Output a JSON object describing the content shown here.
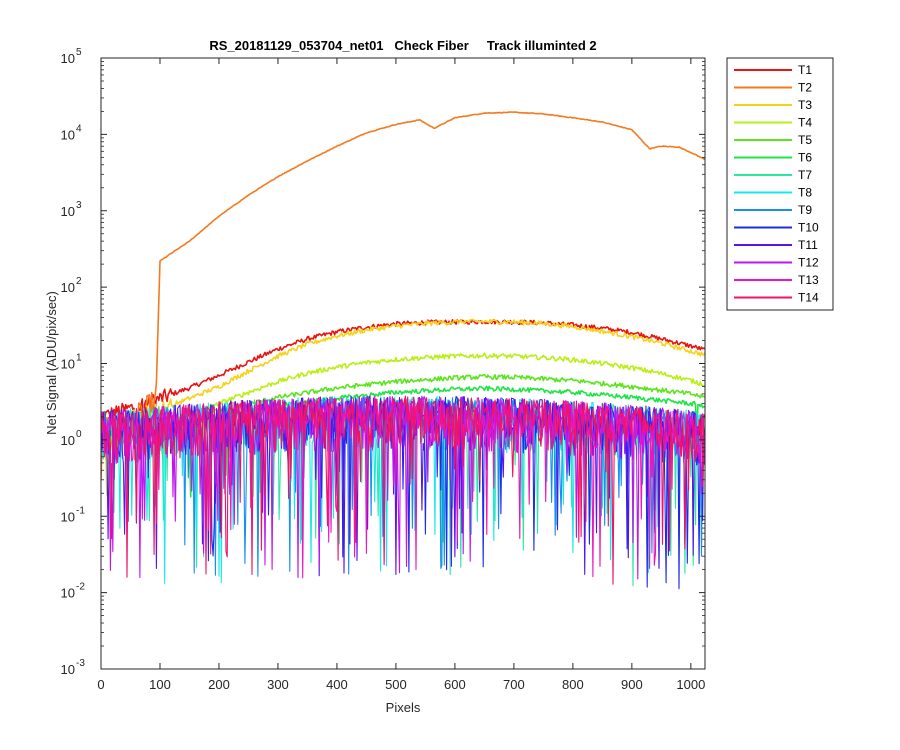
{
  "chart_data": {
    "type": "line",
    "title": "RS_20181129_053704_net01   Check Fiber     Track illuminted 2",
    "xlabel": "Pixels",
    "ylabel": "Net Signal (ADU/pix/sec)",
    "xlim": [
      0,
      1024
    ],
    "ylim": [
      0.001,
      100000
    ],
    "yscale": "log",
    "grid": false,
    "legend_position": "outside-top-right",
    "x_ticks": [
      0,
      100,
      200,
      300,
      400,
      500,
      600,
      700,
      800,
      900,
      1000
    ],
    "x_tick_labels": [
      "0",
      "100",
      "200",
      "300",
      "400",
      "500",
      "600",
      "700",
      "800",
      "900",
      "1000"
    ],
    "y_ticks": [
      0.001,
      0.01,
      0.1,
      1,
      10,
      100,
      1000,
      10000,
      100000
    ],
    "y_tick_labels": [
      {
        "base": "10",
        "exp": "-3"
      },
      {
        "base": "10",
        "exp": "-2"
      },
      {
        "base": "10",
        "exp": "-1"
      },
      {
        "base": "10",
        "exp": "0"
      },
      {
        "base": "10",
        "exp": "1"
      },
      {
        "base": "10",
        "exp": "2"
      },
      {
        "base": "10",
        "exp": "3"
      },
      {
        "base": "10",
        "exp": "4"
      },
      {
        "base": "10",
        "exp": "5"
      }
    ],
    "series": [
      {
        "name": "T1",
        "color": "#e81313",
        "kind": "signal",
        "x": [
          0,
          50,
          100,
          150,
          200,
          250,
          300,
          350,
          400,
          450,
          500,
          550,
          600,
          650,
          700,
          750,
          800,
          850,
          900,
          950,
          1000,
          1024
        ],
        "y": [
          2.0,
          2.6,
          3.5,
          4.8,
          7.0,
          10.5,
          15.5,
          21.0,
          26.0,
          30.0,
          33.0,
          34.5,
          35.0,
          35.5,
          35.0,
          34.0,
          32.0,
          29.0,
          25.5,
          21.0,
          17.0,
          15.0
        ]
      },
      {
        "name": "T2",
        "color": "#f57a1f",
        "kind": "signal",
        "x": [
          0,
          93,
          100,
          150,
          200,
          250,
          300,
          350,
          400,
          450,
          500,
          540,
          565,
          600,
          650,
          700,
          750,
          800,
          850,
          900,
          930,
          950,
          980,
          1000,
          1024
        ],
        "y": [
          0.7,
          3.0,
          220,
          400,
          850,
          1600,
          2800,
          4500,
          7000,
          10500,
          13500,
          15500,
          12000,
          16500,
          19000,
          19500,
          18500,
          16500,
          14500,
          11500,
          6500,
          7000,
          6800,
          5800,
          4700
        ]
      },
      {
        "name": "T3",
        "color": "#f5d21a",
        "kind": "signal",
        "x": [
          0,
          50,
          100,
          150,
          200,
          250,
          300,
          350,
          400,
          450,
          500,
          550,
          600,
          650,
          700,
          750,
          800,
          850,
          900,
          950,
          1000,
          1024
        ],
        "y": [
          1.5,
          2.0,
          2.5,
          3.5,
          5.0,
          8.0,
          12.5,
          18.0,
          23.0,
          27.5,
          31.0,
          33.5,
          35.0,
          35.5,
          35.0,
          33.5,
          30.5,
          26.5,
          22.5,
          18.5,
          14.5,
          13.0
        ]
      },
      {
        "name": "T4",
        "color": "#b9ef14",
        "kind": "signal",
        "x": [
          0,
          100,
          150,
          200,
          250,
          300,
          350,
          400,
          450,
          500,
          550,
          600,
          650,
          700,
          750,
          800,
          850,
          900,
          950,
          1000,
          1024
        ],
        "y": [
          1.2,
          1.6,
          2.2,
          3.0,
          4.2,
          5.8,
          7.5,
          9.0,
          10.3,
          11.3,
          12.0,
          12.5,
          12.7,
          12.5,
          12.0,
          11.2,
          10.0,
          8.8,
          7.4,
          6.0,
          5.3
        ]
      },
      {
        "name": "T5",
        "color": "#5ae51c",
        "kind": "signal",
        "x": [
          0,
          100,
          200,
          300,
          400,
          500,
          600,
          650,
          700,
          800,
          900,
          1000,
          1024
        ],
        "y": [
          1.2,
          1.5,
          2.4,
          3.6,
          4.8,
          5.8,
          6.5,
          6.7,
          6.6,
          6.0,
          5.0,
          4.0,
          3.6
        ]
      },
      {
        "name": "T6",
        "color": "#1ee545",
        "kind": "signal",
        "x": [
          0,
          100,
          200,
          300,
          400,
          500,
          600,
          650,
          700,
          800,
          900,
          1000,
          1024
        ],
        "y": [
          1.2,
          1.4,
          2.0,
          2.8,
          3.5,
          4.2,
          4.6,
          4.7,
          4.6,
          4.2,
          3.6,
          3.0,
          2.8
        ]
      },
      {
        "name": "T7",
        "color": "#2de6a2",
        "kind": "noise"
      },
      {
        "name": "T8",
        "color": "#19e8e8",
        "kind": "noise"
      },
      {
        "name": "T9",
        "color": "#168ff0",
        "kind": "noise"
      },
      {
        "name": "T10",
        "color": "#1c2bea",
        "kind": "noise"
      },
      {
        "name": "T11",
        "color": "#5a14ea",
        "kind": "noise"
      },
      {
        "name": "T12",
        "color": "#c016ec",
        "kind": "noise"
      },
      {
        "name": "T13",
        "color": "#ec17b9",
        "kind": "noise"
      },
      {
        "name": "T14",
        "color": "#f01466",
        "kind": "noise"
      }
    ]
  }
}
